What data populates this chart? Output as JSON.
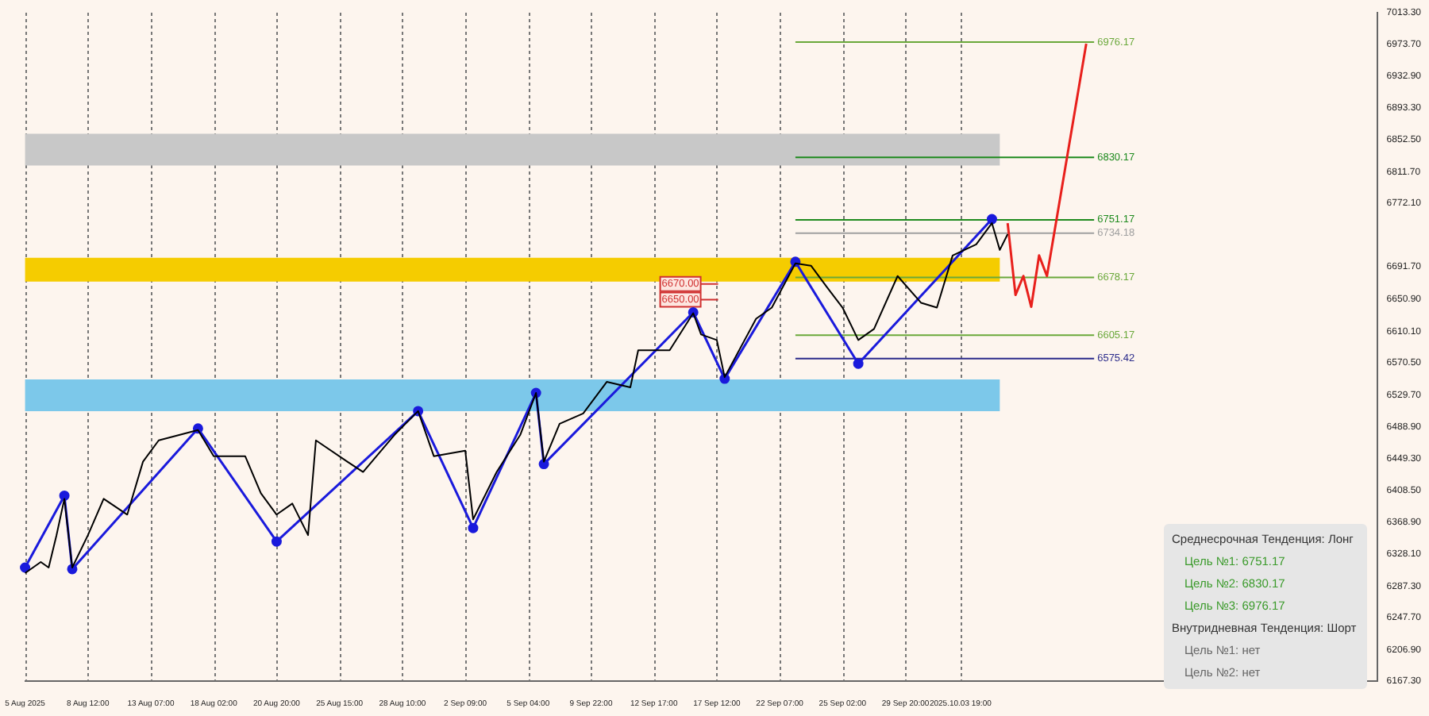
{
  "chart_data": {
    "type": "line",
    "categories": [
      "5 Aug 2025",
      null,
      null,
      null,
      null,
      null,
      null,
      null,
      "8 Aug 12:00",
      null,
      null,
      null,
      null,
      null,
      null,
      null,
      "13 Aug 07:00",
      null,
      null,
      null,
      null,
      null,
      null,
      null,
      "18 Aug 02:00",
      null,
      null,
      null,
      null,
      null,
      null,
      null,
      "20 Aug 20:00",
      null,
      null,
      null,
      null,
      null,
      null,
      null,
      "25 Aug 15:00",
      null,
      null,
      null,
      null,
      null,
      null,
      null,
      "28 Aug 10:00",
      null,
      null,
      null,
      null,
      null,
      null,
      null,
      "2 Sep 09:00",
      null,
      null,
      null,
      null,
      null,
      null,
      null,
      "5 Sep 04:00",
      null,
      null,
      null,
      null,
      null,
      null,
      null,
      "9 Sep 22:00",
      null,
      null,
      null,
      null,
      null,
      null,
      null,
      "12 Sep 17:00",
      null,
      null,
      null,
      null,
      null,
      null,
      null,
      "17 Sep 12:00",
      null,
      null,
      null,
      null,
      null,
      null,
      null,
      "22 Sep 07:00",
      null,
      null,
      null,
      null,
      null,
      null,
      null,
      "25 Sep 02:00",
      null,
      null,
      null,
      null,
      null,
      null,
      null,
      "29 Sep 20:00",
      null,
      null,
      null,
      null,
      null,
      null,
      "2025.10.03 19:00",
      null,
      null,
      null,
      null,
      null,
      null,
      null,
      null,
      null,
      null,
      null,
      null,
      null,
      null,
      null,
      null,
      null,
      null,
      null,
      null,
      null,
      null,
      null,
      null,
      null,
      null,
      null,
      null,
      null,
      null,
      null,
      null,
      null,
      null,
      null,
      null,
      null,
      null,
      null,
      null,
      null,
      null,
      null,
      null,
      null,
      null,
      null,
      null,
      null,
      null,
      null,
      null,
      null
    ],
    "ylim": [
      6167.3,
      7013.3
    ],
    "yticks": [
      {
        "value": 6167.3,
        "label": "6167.30"
      },
      {
        "value": 6206.9,
        "label": "6206.90"
      },
      {
        "value": 6247.7,
        "label": "6247.70"
      },
      {
        "value": 6287.3,
        "label": "6287.30"
      },
      {
        "value": 6328.1,
        "label": "6328.10"
      },
      {
        "value": 6368.9,
        "label": "6368.90"
      },
      {
        "value": 6408.5,
        "label": "6408.50"
      },
      {
        "value": 6449.3,
        "label": "6449.30"
      },
      {
        "value": 6488.9,
        "label": "6488.90"
      },
      {
        "value": 6529.7,
        "label": "6529.70"
      },
      {
        "value": 6570.5,
        "label": "6570.50"
      },
      {
        "value": 6610.1,
        "label": "6610.10"
      },
      {
        "value": 6650.9,
        "label": "6650.90"
      },
      {
        "value": 6691.7,
        "label": "6691.70"
      },
      {
        "value": 6772.1,
        "label": "6772.10"
      },
      {
        "value": 6811.7,
        "label": "6811.70"
      },
      {
        "value": 6852.5,
        "label": "6852.50"
      },
      {
        "value": 6893.3,
        "label": "6893.30"
      },
      {
        "value": 6932.9,
        "label": "6932.90"
      },
      {
        "value": 6973.7,
        "label": "6973.70"
      },
      {
        "value": 7013.3,
        "label": "7013.30"
      }
    ],
    "grid": "x",
    "legend": false,
    "series": [
      {
        "color": "#000000",
        "marker": "none",
        "values": [
          6304,
          null,
          6318,
          6311,
          6352,
          6398,
          6311,
          null,
          6352,
          null,
          6398,
          null,
          null,
          6378,
          null,
          6445,
          null,
          6472,
          null,
          null,
          null,
          null,
          6485,
          null,
          6452,
          null,
          null,
          null,
          6452,
          null,
          6405,
          null,
          6378,
          null,
          6392,
          null,
          6352,
          6472,
          null,
          null,
          null,
          6445,
          null,
          6432,
          null,
          null,
          null,
          6479,
          null,
          null,
          6509,
          null,
          6452,
          null,
          null,
          null,
          6459,
          6372,
          null,
          null,
          6432,
          null,
          null,
          6479,
          null,
          6532,
          6445,
          null,
          6493,
          null,
          null,
          6506,
          null,
          null,
          6546,
          null,
          null,
          6539,
          6586,
          null,
          null,
          null,
          6586,
          null,
          null,
          6633,
          6606,
          null,
          6599,
          6552,
          null,
          null,
          null,
          6626,
          null,
          6640,
          null,
          null,
          6696,
          null,
          6693,
          null,
          6666,
          null,
          6640,
          null,
          6599,
          null,
          6613,
          null,
          null,
          6680,
          null,
          null,
          6646,
          null,
          6640,
          null,
          6706,
          null,
          null,
          6720,
          null,
          6747,
          6713,
          6733,
          null,
          null,
          null,
          null,
          null,
          null,
          null,
          null,
          null,
          null,
          null,
          null,
          null,
          null,
          null,
          null,
          null,
          null,
          null,
          null,
          null,
          null,
          null,
          null,
          null,
          null,
          null,
          null,
          null,
          null,
          null,
          null,
          null,
          null,
          null,
          null,
          null,
          null,
          null,
          null,
          null,
          null,
          null,
          null,
          null,
          null,
          null
        ]
      },
      {
        "color": "#1a1adc",
        "marker": "circle",
        "values": [
          6311,
          null,
          null,
          null,
          null,
          6402,
          6309,
          null,
          null,
          null,
          null,
          null,
          null,
          null,
          null,
          null,
          null,
          null,
          null,
          null,
          null,
          null,
          6487,
          null,
          null,
          null,
          null,
          null,
          null,
          null,
          null,
          null,
          6344,
          null,
          null,
          null,
          null,
          null,
          null,
          null,
          null,
          null,
          null,
          null,
          null,
          null,
          null,
          null,
          null,
          null,
          6509,
          null,
          null,
          null,
          null,
          null,
          null,
          6361,
          null,
          null,
          null,
          null,
          null,
          null,
          null,
          6532,
          6442,
          null,
          null,
          null,
          null,
          null,
          null,
          null,
          null,
          null,
          null,
          null,
          null,
          null,
          null,
          null,
          null,
          null,
          null,
          6634,
          null,
          null,
          null,
          6550,
          null,
          null,
          null,
          null,
          null,
          null,
          null,
          null,
          6698,
          null,
          null,
          null,
          null,
          null,
          null,
          null,
          6569,
          null,
          null,
          null,
          null,
          null,
          null,
          null,
          null,
          null,
          null,
          null,
          null,
          null,
          null,
          null,
          null,
          6752,
          null,
          null,
          null,
          null,
          null,
          null,
          null,
          null,
          null,
          null,
          null,
          null,
          null,
          null,
          null,
          null,
          null,
          null,
          null,
          null,
          null,
          null,
          null,
          null,
          null,
          null,
          null,
          null,
          null,
          null,
          null,
          null,
          null,
          null,
          null,
          null,
          null,
          null,
          null,
          null,
          null,
          null,
          null,
          null,
          null,
          null,
          null,
          null,
          null
        ]
      },
      {
        "color": "#e8201c",
        "marker": "none",
        "values": [
          null,
          null,
          null,
          null,
          null,
          null,
          null,
          null,
          null,
          null,
          null,
          null,
          null,
          null,
          null,
          null,
          null,
          null,
          null,
          null,
          null,
          null,
          null,
          null,
          null,
          null,
          null,
          null,
          null,
          null,
          null,
          null,
          null,
          null,
          null,
          null,
          null,
          null,
          null,
          null,
          null,
          null,
          null,
          null,
          null,
          null,
          null,
          null,
          null,
          null,
          null,
          null,
          null,
          null,
          null,
          null,
          null,
          null,
          null,
          null,
          null,
          null,
          null,
          null,
          null,
          null,
          null,
          null,
          null,
          null,
          null,
          null,
          null,
          null,
          null,
          null,
          null,
          null,
          null,
          null,
          null,
          null,
          null,
          null,
          null,
          null,
          null,
          null,
          null,
          null,
          null,
          null,
          null,
          null,
          null,
          null,
          null,
          null,
          null,
          null,
          null,
          null,
          null,
          null,
          null,
          null,
          null,
          null,
          null,
          null,
          null,
          null,
          null,
          null,
          null,
          null,
          null,
          null,
          null,
          null,
          null,
          null,
          null,
          null,
          null,
          6747,
          6656,
          6680,
          6641,
          6706,
          6680,
          null,
          null,
          null,
          null,
          6974,
          null,
          null,
          null,
          null,
          null,
          null,
          null,
          null,
          null,
          null,
          null,
          null,
          null,
          null,
          null,
          null,
          null,
          null,
          null,
          null,
          null,
          null,
          null,
          null,
          null,
          null,
          null,
          null,
          null,
          null,
          null,
          null,
          null,
          null,
          null,
          null,
          null
        ]
      }
    ],
    "ref_lines": [
      {
        "axis": "y",
        "value": 6976.17,
        "label": "6976.17",
        "color": "#6aa83a"
      },
      {
        "axis": "y",
        "value": 6830.17,
        "label": "6830.17",
        "color": "#1e8a1e"
      },
      {
        "axis": "y",
        "value": 6751.17,
        "label": "6751.17",
        "color": "#1e8a1e"
      },
      {
        "axis": "y",
        "value": 6734.18,
        "label": "6734.18",
        "color": "#a0a0a0"
      },
      {
        "axis": "y",
        "value": 6678.17,
        "label": "6678.17",
        "color": "#6aa83a"
      },
      {
        "axis": "y",
        "value": 6605.17,
        "label": "6605.17",
        "color": "#6aa83a"
      },
      {
        "axis": "y",
        "value": 6575.42,
        "label": "6575.42",
        "color": "#2a2a8a"
      },
      {
        "axis": "y",
        "value": 6670,
        "label": "6670.00",
        "color": "#d03030"
      },
      {
        "axis": "y",
        "value": 6650,
        "label": "6650.00",
        "color": "#d03030"
      }
    ],
    "bands": [
      {
        "axis": "y",
        "from": 6820,
        "to": 6860,
        "color": "#c8c8c8"
      },
      {
        "axis": "y",
        "from": 6673,
        "to": 6703,
        "color": "#f5cc00"
      },
      {
        "axis": "y",
        "from": 6509,
        "to": 6549,
        "color": "#7cc8ea"
      }
    ],
    "annotations": [
      "Среднесрочная Тенденция: Лонг",
      "Цель №1: 6751.17",
      "Цель №2: 6830.17",
      "Цель №3: 6976.17",
      "Внутридневная Тенденция: Шорт",
      "Цель №1: нет",
      "Цель №2: нет"
    ]
  }
}
